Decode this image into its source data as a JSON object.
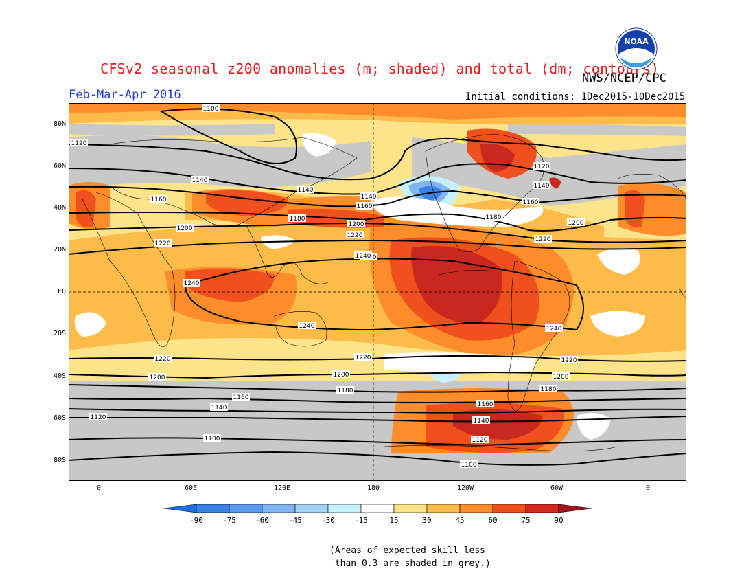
{
  "title": "CFSv2 seasonal z200 anomalies (m; shaded) and total (dm; contours)",
  "agency": "NWS/NCEP/CPC",
  "logo_text": "NOAA",
  "period": "Feb-Mar-Apr 2016",
  "initial_conditions": "Initial conditions: 1Dec2015-10Dec2015",
  "lat_labels": [
    "80N",
    "60N",
    "40N",
    "20N",
    "EQ",
    "20S",
    "40S",
    "60S",
    "80S"
  ],
  "lon_labels": [
    "0",
    "60E",
    "120E",
    "180",
    "120W",
    "60W",
    "0"
  ],
  "contour_labels": [
    "1100",
    "1120",
    "1140",
    "1160",
    "1180",
    "1200",
    "1220",
    "1240"
  ],
  "colorbar": {
    "ticks": [
      "-90",
      "-75",
      "-60",
      "-45",
      "-30",
      "-15",
      "15",
      "30",
      "45",
      "60",
      "75",
      "90"
    ],
    "colors": [
      "#1e6ee6",
      "#3c82e6",
      "#5a9aeb",
      "#82b4f0",
      "#a0d2f5",
      "#c8f0fa",
      "#ffffff",
      "#fde38a",
      "#fdbb4a",
      "#fd8c2a",
      "#f0501e",
      "#d2281e",
      "#a0141e"
    ]
  },
  "skill_color": "#c8c8c8",
  "note": "(Areas of expected skill less\n than 0.3 are shaded in grey.)"
}
